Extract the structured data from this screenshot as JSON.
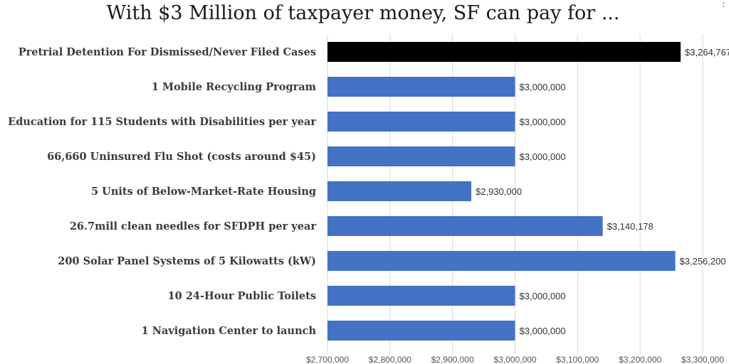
{
  "chart_data": {
    "type": "bar",
    "orientation": "horizontal",
    "title": "With $3 Million of taxpayer money, SF can pay for ...",
    "categories": [
      "Pretrial Detention For Dismissed/Never Filed Cases",
      "1 Mobile Recycling Program",
      "Education  for 115 Students with Disabilities per year",
      "66,660 Uninsured Flu Shot (costs around $45)",
      "5 Units of Below-Market-Rate Housing",
      "26.7mill clean needles for SFDPH per year",
      "200 Solar Panel Systems of 5 Kilowatts (kW)",
      "10 24-Hour Public Toilets",
      "1 Navigation Center to launch"
    ],
    "values": [
      3264767,
      3000000,
      3000000,
      3000000,
      2930000,
      3140178,
      3256200,
      3000000,
      3000000
    ],
    "data_labels": [
      "$3,264,767",
      "$3,000,000",
      "$3,000,000",
      "$3,000,000",
      "$2,930,000",
      "$3,140,178",
      "$3,256,200",
      "$3,000,000",
      "$3,000,000"
    ],
    "bar_colors": [
      "#000000",
      "#4472c4",
      "#4472c4",
      "#4472c4",
      "#4472c4",
      "#4472c4",
      "#4472c4",
      "#4472c4",
      "#4472c4"
    ],
    "xlim": [
      2700000,
      3300000
    ],
    "xticks": [
      2700000,
      2800000,
      2900000,
      3000000,
      3100000,
      3200000,
      3300000
    ],
    "xtick_labels": [
      "$2,700,000",
      "$2,800,000",
      "$2,900,000",
      "$3,000,000",
      "$3,100,000",
      "$3,200,000",
      "$3,300,000"
    ],
    "xlabel": "",
    "ylabel": "",
    "grid": "vertical"
  }
}
